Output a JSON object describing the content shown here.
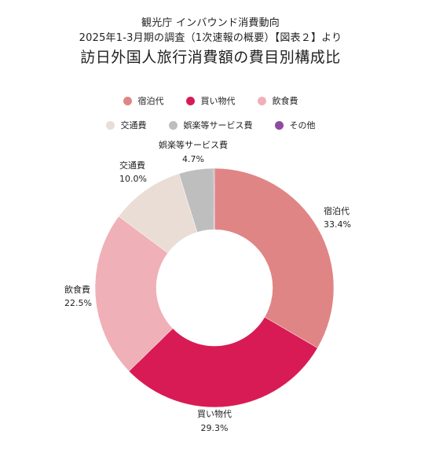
{
  "header": {
    "subtitle_line1": "観光庁 インバウンド消費動向",
    "subtitle_line2": "2025年1-3月期の調査（1次速報の概要）【図表２】より",
    "title": "訪日外国人旅行消費額の費目別構成比"
  },
  "chart_data": {
    "type": "pie",
    "donut": true,
    "title": "訪日外国人旅行消費額の費目別構成比",
    "legend_position": "top",
    "categories": [
      "宿泊代",
      "買い物代",
      "飲食費",
      "交通費",
      "娯楽等サービス費",
      "その他"
    ],
    "values": [
      33.4,
      29.3,
      22.5,
      10.0,
      4.7,
      0.1
    ],
    "value_labels": [
      "33.4%",
      "29.3%",
      "22.5%",
      "10.0%",
      "4.7%",
      ""
    ],
    "colors": [
      "#E08585",
      "#D81B54",
      "#F0B0B8",
      "#EADDD5",
      "#BEBEBE",
      "#8E4B9E"
    ]
  }
}
